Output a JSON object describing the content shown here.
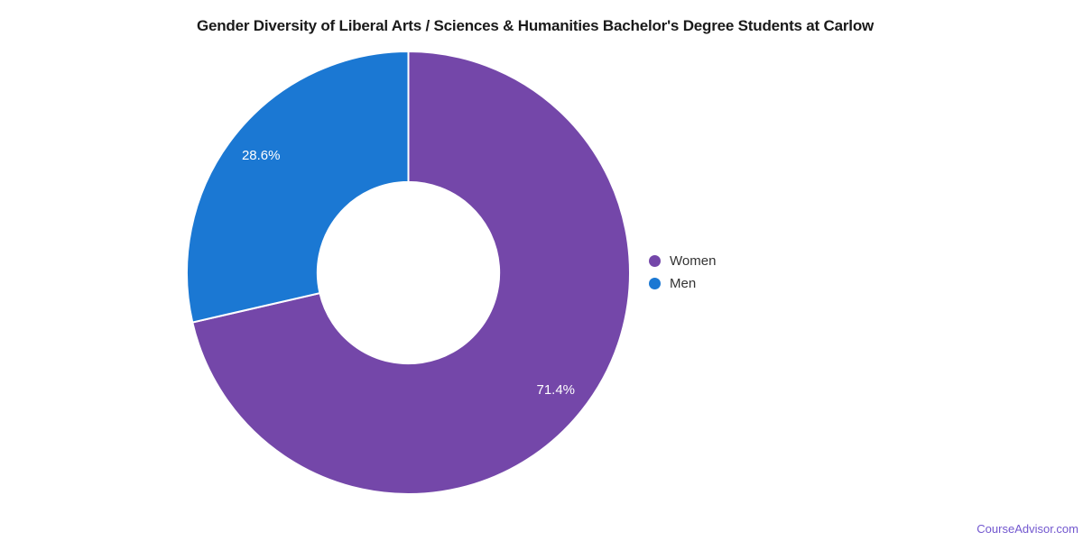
{
  "chart_data": {
    "type": "pie",
    "subtype": "donut",
    "title": "Gender Diversity of Liberal Arts / Sciences & Humanities Bachelor's Degree Students at Carlow",
    "categories": [
      "Women",
      "Men"
    ],
    "values": [
      71.4,
      28.6
    ],
    "series": [
      {
        "name": "Women",
        "value": 71.4,
        "label": "71.4%",
        "color": "#7447A9"
      },
      {
        "name": "Men",
        "value": 28.6,
        "label": "28.6%",
        "color": "#1B78D3"
      }
    ],
    "unit": "%",
    "start_angle_deg": 0,
    "direction": "clockwise",
    "inner_radius_ratio": 0.41,
    "legend_position": "middle-right",
    "slice_label_color": "#FFFFFF",
    "separator_color": "#FFFFFF",
    "background_color": "#FFFFFF",
    "grid": false
  },
  "legend": {
    "items": [
      {
        "label": "Women"
      },
      {
        "label": "Men"
      }
    ]
  },
  "watermark": {
    "text": "CourseAdvisor.com",
    "color": "#7257CF"
  }
}
